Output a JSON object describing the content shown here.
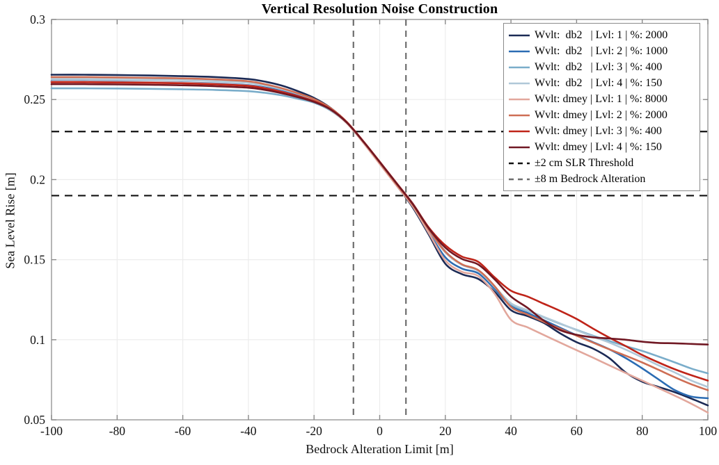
{
  "figure": {
    "title": "Vertical Resolution Noise Construction",
    "xlabel": "Bedrock Alteration Limit [m]",
    "ylabel": "Sea Level Rise [m]"
  },
  "chart_data": {
    "type": "line",
    "title": "Vertical Resolution Noise Construction",
    "xlabel": "Bedrock Alteration Limit [m]",
    "ylabel": "Sea Level Rise [m]",
    "xlim": [
      -100,
      100
    ],
    "ylim": [
      0.05,
      0.3
    ],
    "xticks": [
      "-100",
      "-80",
      "-60",
      "-40",
      "-20",
      "0",
      "20",
      "40",
      "60",
      "80",
      "100"
    ],
    "yticks": [
      "0.05",
      "0.1",
      "0.15",
      "0.2",
      "0.25",
      "0.3"
    ],
    "grid": true,
    "legend_position": "top-right",
    "axis_color": "#999999",
    "grid_color": "#ececec",
    "x": [
      -100,
      -90,
      -80,
      -70,
      -60,
      -50,
      -40,
      -35,
      -30,
      -25,
      -20,
      -15,
      -10,
      -5,
      0,
      5,
      10,
      15,
      20,
      25,
      30,
      35,
      40,
      45,
      50,
      55,
      60,
      65,
      70,
      75,
      80,
      85,
      90,
      95,
      100
    ],
    "series": [
      {
        "name": "Wvlt:  db2   | Lvl: 1 | %: 2000",
        "color": "#1b2a55",
        "values": [
          0.2655,
          0.2655,
          0.2653,
          0.265,
          0.2646,
          0.264,
          0.2628,
          0.2612,
          0.2588,
          0.2553,
          0.251,
          0.2448,
          0.2358,
          0.2235,
          0.21,
          0.1968,
          0.1828,
          0.1655,
          0.1475,
          0.141,
          0.138,
          0.13,
          0.1185,
          0.1148,
          0.1105,
          0.104,
          0.0985,
          0.0945,
          0.0885,
          0.0795,
          0.0738,
          0.0705,
          0.0672,
          0.0632,
          0.059
        ],
        "final_value": 0.059
      },
      {
        "name": "Wvlt:  db2   | Lvl: 2 | %: 1000",
        "color": "#2b6cb3",
        "values": [
          0.2615,
          0.2615,
          0.2613,
          0.261,
          0.2607,
          0.2601,
          0.259,
          0.2576,
          0.2556,
          0.2528,
          0.2495,
          0.244,
          0.2355,
          0.2235,
          0.2105,
          0.1972,
          0.184,
          0.1672,
          0.1515,
          0.1445,
          0.1415,
          0.1318,
          0.121,
          0.1168,
          0.1122,
          0.1075,
          0.1028,
          0.0985,
          0.094,
          0.0885,
          0.0821,
          0.0752,
          0.0685,
          0.0645,
          0.0635
        ],
        "final_value": 0.0635
      },
      {
        "name": "Wvlt:  db2   | Lvl: 3 | %: 400",
        "color": "#7aadca",
        "values": [
          0.257,
          0.257,
          0.2569,
          0.2567,
          0.2564,
          0.256,
          0.2552,
          0.2542,
          0.2527,
          0.2505,
          0.248,
          0.2432,
          0.2352,
          0.2233,
          0.2105,
          0.1976,
          0.1845,
          0.169,
          0.1552,
          0.147,
          0.1432,
          0.133,
          0.1222,
          0.1182,
          0.114,
          0.11,
          0.1062,
          0.1025,
          0.0992,
          0.096,
          0.093,
          0.0895,
          0.0858,
          0.082,
          0.079
        ],
        "final_value": 0.079
      },
      {
        "name": "Wvlt:  db2   | Lvl: 4 | %: 150",
        "color": "#b0c8d8",
        "values": [
          0.2628,
          0.2628,
          0.2626,
          0.2624,
          0.2621,
          0.2615,
          0.2604,
          0.2588,
          0.2565,
          0.2536,
          0.25,
          0.2445,
          0.2358,
          0.2236,
          0.2106,
          0.1974,
          0.1843,
          0.1685,
          0.1545,
          0.1468,
          0.143,
          0.1332,
          0.1228,
          0.1185,
          0.1143,
          0.1102,
          0.106,
          0.102,
          0.0982,
          0.0938,
          0.089,
          0.084,
          0.0795,
          0.0745,
          0.0705
        ],
        "final_value": 0.0705
      },
      {
        "name": "Wvlt: dmey | Lvl: 1 | %: 8000",
        "color": "#e2a79c",
        "values": [
          0.2612,
          0.2612,
          0.261,
          0.2608,
          0.2605,
          0.2598,
          0.2587,
          0.2571,
          0.2549,
          0.2521,
          0.2487,
          0.2436,
          0.2352,
          0.223,
          0.2098,
          0.1966,
          0.1835,
          0.1665,
          0.1495,
          0.1425,
          0.1398,
          0.1288,
          0.1125,
          0.1078,
          0.103,
          0.0982,
          0.0935,
          0.0888,
          0.084,
          0.0792,
          0.0745,
          0.0698,
          0.065,
          0.06,
          0.0545
        ],
        "final_value": 0.0545
      },
      {
        "name": "Wvlt: dmey | Lvl: 2 | %: 2000",
        "color": "#ce6e54",
        "values": [
          0.264,
          0.264,
          0.2638,
          0.2635,
          0.2632,
          0.2626,
          0.2614,
          0.2596,
          0.2571,
          0.254,
          0.2503,
          0.2447,
          0.236,
          0.2238,
          0.2107,
          0.1975,
          0.1844,
          0.1688,
          0.155,
          0.1472,
          0.1435,
          0.1335,
          0.1205,
          0.1158,
          0.1112,
          0.1068,
          0.1025,
          0.0982,
          0.094,
          0.09,
          0.0858,
          0.0812,
          0.0765,
          0.0722,
          0.0685
        ],
        "final_value": 0.0685
      },
      {
        "name": "Wvlt: dmey | Lvl: 3 | %: 400",
        "color": "#bf2419",
        "values": [
          0.2608,
          0.2608,
          0.2606,
          0.2604,
          0.2601,
          0.2595,
          0.2585,
          0.257,
          0.2548,
          0.2522,
          0.249,
          0.244,
          0.2358,
          0.224,
          0.2112,
          0.1982,
          0.1852,
          0.17,
          0.159,
          0.152,
          0.1487,
          0.139,
          0.1306,
          0.127,
          0.1225,
          0.118,
          0.113,
          0.107,
          0.1013,
          0.096,
          0.0905,
          0.0858,
          0.0815,
          0.0778,
          0.0745
        ],
        "final_value": 0.0745
      },
      {
        "name": "Wvlt: dmey | Lvl: 4 | %: 150",
        "color": "#701823",
        "values": [
          0.2596,
          0.2596,
          0.2594,
          0.2592,
          0.2589,
          0.2583,
          0.2574,
          0.256,
          0.254,
          0.2515,
          0.2485,
          0.2438,
          0.2356,
          0.2238,
          0.211,
          0.198,
          0.185,
          0.1695,
          0.1575,
          0.1505,
          0.147,
          0.1378,
          0.127,
          0.12,
          0.112,
          0.106,
          0.1031,
          0.1015,
          0.1008,
          0.1,
          0.0988,
          0.098,
          0.0978,
          0.0974,
          0.097
        ],
        "final_value": 0.097
      }
    ],
    "reference_lines": {
      "horizontal": {
        "label": "±2 cm SLR Threshold",
        "color": "#111111",
        "style": "dashed",
        "y": [
          0.23,
          0.19
        ]
      },
      "vertical": {
        "label": "±8 m Bedrock Alteration",
        "color": "#6e6e6e",
        "style": "dashed",
        "x": [
          -8,
          8
        ]
      }
    }
  },
  "legend": {
    "entries": [
      {
        "label": "Wvlt:  db2   | Lvl: 1 | %: 2000",
        "color": "#1b2a55",
        "dash": false
      },
      {
        "label": "Wvlt:  db2   | Lvl: 2 | %: 1000",
        "color": "#2b6cb3",
        "dash": false
      },
      {
        "label": "Wvlt:  db2   | Lvl: 3 | %: 400",
        "color": "#7aadca",
        "dash": false
      },
      {
        "label": "Wvlt:  db2   | Lvl: 4 | %: 150",
        "color": "#b0c8d8",
        "dash": false
      },
      {
        "label": "Wvlt: dmey | Lvl: 1 | %: 8000",
        "color": "#e2a79c",
        "dash": false
      },
      {
        "label": "Wvlt: dmey | Lvl: 2 | %: 2000",
        "color": "#ce6e54",
        "dash": false
      },
      {
        "label": "Wvlt: dmey | Lvl: 3 | %: 400",
        "color": "#bf2419",
        "dash": false
      },
      {
        "label": "Wvlt: dmey | Lvl: 4 | %: 150",
        "color": "#701823",
        "dash": false
      },
      {
        "label": "±2 cm SLR Threshold",
        "color": "#111111",
        "dash": true
      },
      {
        "label": "±8 m Bedrock Alteration",
        "color": "#6e6e6e",
        "dash": true
      }
    ]
  }
}
